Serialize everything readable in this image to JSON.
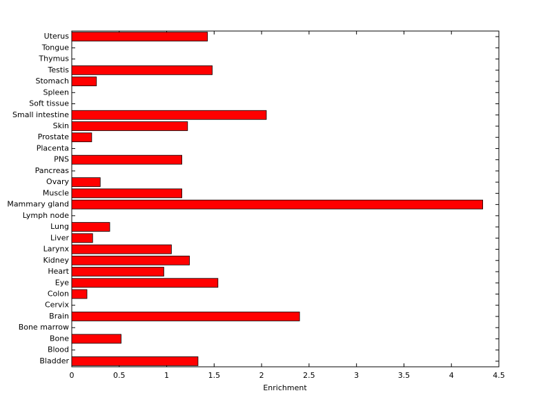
{
  "chart_data": {
    "type": "barh",
    "x_label": "Enrichment",
    "categories": [
      "Bladder",
      "Blood",
      "Bone",
      "Bone marrow",
      "Brain",
      "Cervix",
      "Colon",
      "Eye",
      "Heart",
      "Kidney",
      "Larynx",
      "Liver",
      "Lung",
      "Lymph node",
      "Mammary gland",
      "Muscle",
      "Ovary",
      "Pancreas",
      "PNS",
      "Placenta",
      "Prostate",
      "Skin",
      "Small intestine",
      "Soft tissue",
      "Spleen",
      "Stomach",
      "Testis",
      "Thymus",
      "Tongue",
      "Uterus"
    ],
    "values": [
      1.33,
      0,
      0.52,
      0,
      2.4,
      0,
      0.16,
      1.54,
      0.97,
      1.24,
      1.05,
      0.22,
      0.4,
      0,
      4.33,
      1.16,
      0.3,
      0,
      1.16,
      0,
      0.21,
      1.22,
      2.05,
      0,
      0,
      0.26,
      1.48,
      0,
      0,
      1.43
    ],
    "color": "#ff0000",
    "xlim": [
      0,
      4.5
    ],
    "xticks": [
      0,
      0.5,
      1,
      1.5,
      2,
      2.5,
      3,
      3.5,
      4,
      4.5
    ]
  }
}
